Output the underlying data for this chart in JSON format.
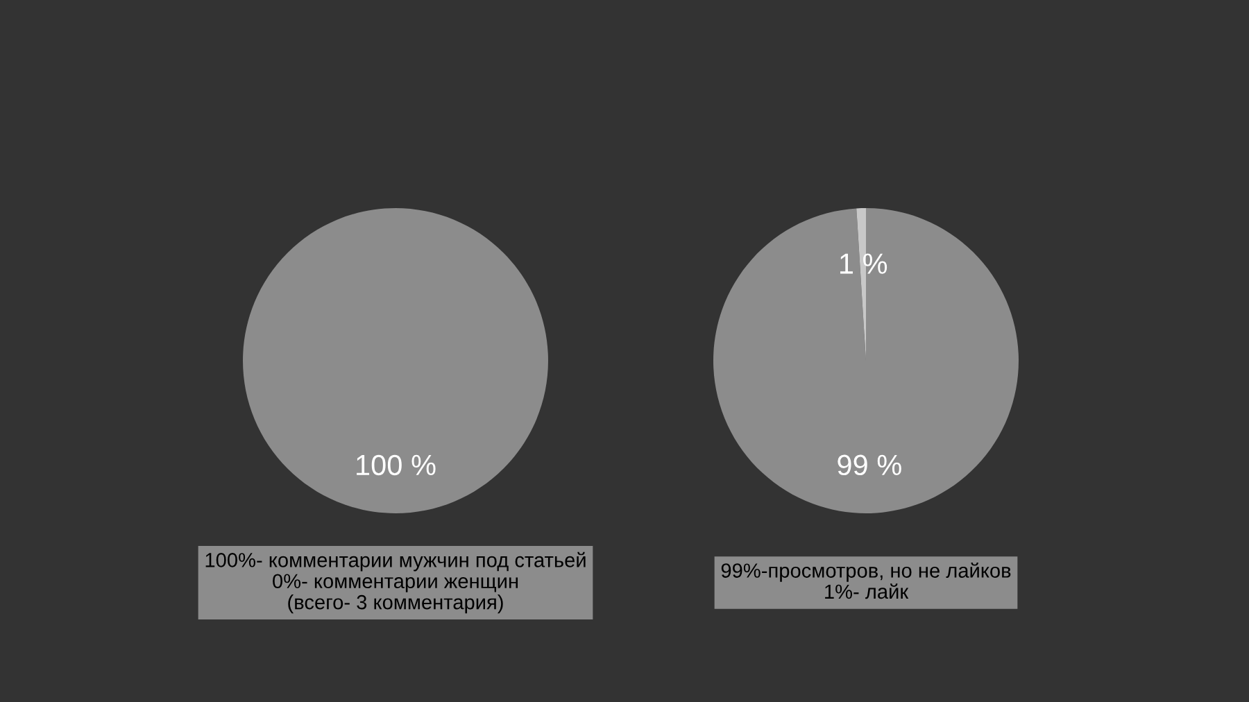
{
  "chart_data": [
    {
      "type": "pie",
      "categories": [
        null
      ],
      "values": [
        100
      ],
      "colors": [
        "#8c8c8c"
      ],
      "value_labels": [
        "100 %"
      ],
      "annotations": [
        "100%- комментарии мужчин под статьей\n0%- комментарии женщин\n(всего- 3 комментария)"
      ]
    },
    {
      "type": "pie",
      "categories": [
        null,
        null
      ],
      "values": [
        99,
        1
      ],
      "colors": [
        "#8c8c8c",
        "#c8c8c8"
      ],
      "value_labels": [
        "99 %",
        "1 %"
      ],
      "annotations": [
        "99%-просмотров, но не лайков\n1%- лайк"
      ]
    }
  ]
}
